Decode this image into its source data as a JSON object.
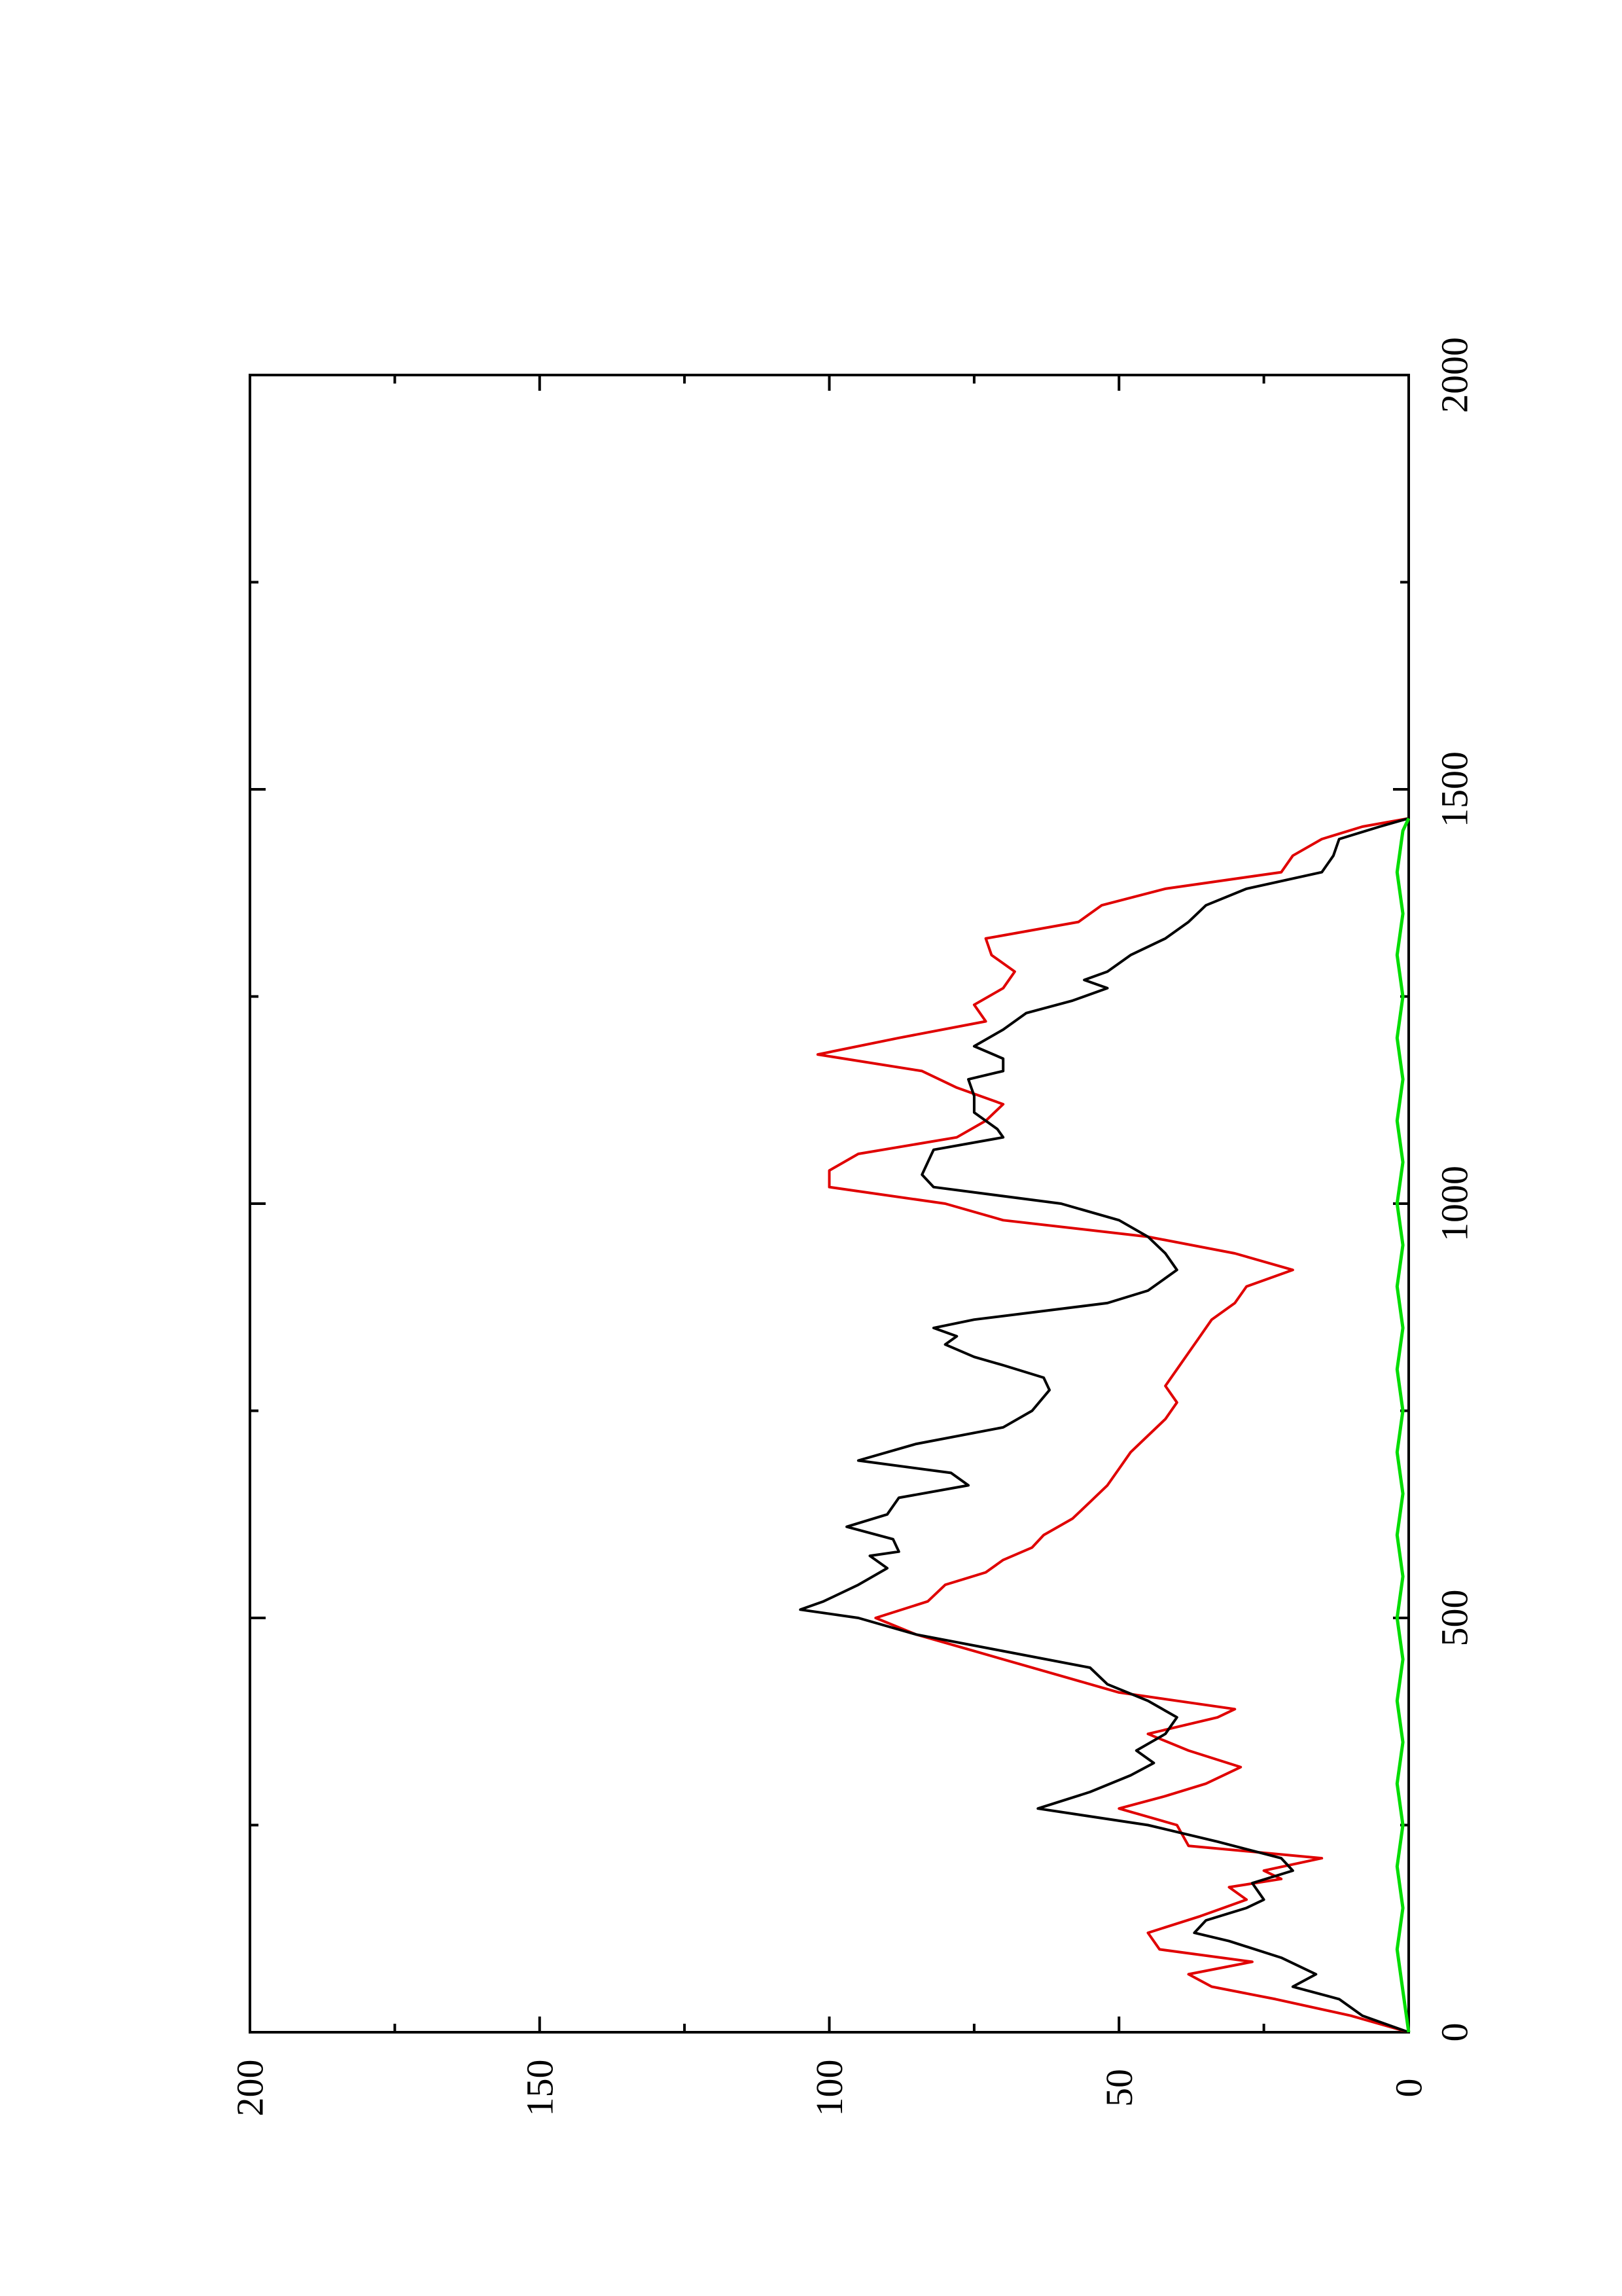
{
  "chart_data": {
    "type": "line",
    "orientation": "rotated-90-ccw",
    "title": "",
    "xlabel": "",
    "ylabel": "",
    "xlim": [
      0,
      2000
    ],
    "ylim": [
      0,
      200
    ],
    "x_ticks": [
      0,
      500,
      1000,
      1500,
      2000
    ],
    "y_ticks": [
      0,
      50,
      100,
      150,
      200
    ],
    "x_minor_step": 250,
    "y_minor_step": 25,
    "grid": false,
    "legend": "none",
    "colors": {
      "black_series": "#000000",
      "red_series": "#e00000",
      "green_series": "#00dd00"
    },
    "series": [
      {
        "color": "black",
        "points": [
          [
            0,
            0
          ],
          [
            20,
            8
          ],
          [
            40,
            12
          ],
          [
            55,
            20
          ],
          [
            70,
            16
          ],
          [
            90,
            22
          ],
          [
            110,
            31
          ],
          [
            120,
            37
          ],
          [
            135,
            35
          ],
          [
            150,
            28
          ],
          [
            160,
            25
          ],
          [
            170,
            26
          ],
          [
            180,
            27
          ],
          [
            195,
            20
          ],
          [
            210,
            22
          ],
          [
            230,
            33
          ],
          [
            250,
            45
          ],
          [
            270,
            64
          ],
          [
            290,
            55
          ],
          [
            310,
            48
          ],
          [
            325,
            44
          ],
          [
            340,
            47
          ],
          [
            360,
            42
          ],
          [
            380,
            40
          ],
          [
            400,
            45
          ],
          [
            420,
            52
          ],
          [
            440,
            55
          ],
          [
            460,
            70
          ],
          [
            480,
            85
          ],
          [
            500,
            95
          ],
          [
            510,
            105
          ],
          [
            520,
            101
          ],
          [
            540,
            95
          ],
          [
            560,
            90
          ],
          [
            575,
            93
          ],
          [
            580,
            88
          ],
          [
            595,
            89
          ],
          [
            610,
            97
          ],
          [
            625,
            90
          ],
          [
            645,
            88
          ],
          [
            660,
            76
          ],
          [
            675,
            79
          ],
          [
            690,
            95
          ],
          [
            710,
            85
          ],
          [
            730,
            70
          ],
          [
            750,
            65
          ],
          [
            775,
            62
          ],
          [
            790,
            63
          ],
          [
            805,
            70
          ],
          [
            815,
            75
          ],
          [
            830,
            80
          ],
          [
            840,
            78
          ],
          [
            850,
            82
          ],
          [
            860,
            75
          ],
          [
            880,
            52
          ],
          [
            895,
            45
          ],
          [
            920,
            40
          ],
          [
            940,
            42
          ],
          [
            960,
            45
          ],
          [
            980,
            50
          ],
          [
            1000,
            60
          ],
          [
            1020,
            82
          ],
          [
            1035,
            84
          ],
          [
            1050,
            83
          ],
          [
            1065,
            82
          ],
          [
            1080,
            70
          ],
          [
            1090,
            71
          ],
          [
            1110,
            75
          ],
          [
            1130,
            75
          ],
          [
            1150,
            76
          ],
          [
            1160,
            70
          ],
          [
            1175,
            70
          ],
          [
            1190,
            75
          ],
          [
            1210,
            70
          ],
          [
            1230,
            66
          ],
          [
            1245,
            58
          ],
          [
            1260,
            52
          ],
          [
            1270,
            56
          ],
          [
            1280,
            52
          ],
          [
            1300,
            48
          ],
          [
            1320,
            42
          ],
          [
            1340,
            38
          ],
          [
            1360,
            35
          ],
          [
            1380,
            28
          ],
          [
            1400,
            15
          ],
          [
            1420,
            13
          ],
          [
            1440,
            12
          ],
          [
            1455,
            5
          ],
          [
            1465,
            0
          ]
        ]
      },
      {
        "color": "red",
        "points": [
          [
            0,
            0
          ],
          [
            20,
            10
          ],
          [
            40,
            23
          ],
          [
            55,
            34
          ],
          [
            70,
            38
          ],
          [
            85,
            27
          ],
          [
            100,
            43
          ],
          [
            120,
            45
          ],
          [
            140,
            36
          ],
          [
            160,
            28
          ],
          [
            175,
            31
          ],
          [
            185,
            22
          ],
          [
            195,
            25
          ],
          [
            210,
            15
          ],
          [
            225,
            38
          ],
          [
            250,
            40
          ],
          [
            270,
            50
          ],
          [
            285,
            42
          ],
          [
            300,
            35
          ],
          [
            320,
            29
          ],
          [
            340,
            38
          ],
          [
            360,
            45
          ],
          [
            380,
            33
          ],
          [
            390,
            30
          ],
          [
            410,
            50
          ],
          [
            430,
            60
          ],
          [
            460,
            75
          ],
          [
            480,
            85
          ],
          [
            500,
            92
          ],
          [
            520,
            83
          ],
          [
            540,
            80
          ],
          [
            555,
            73
          ],
          [
            570,
            70
          ],
          [
            585,
            65
          ],
          [
            600,
            63
          ],
          [
            620,
            58
          ],
          [
            640,
            55
          ],
          [
            660,
            52
          ],
          [
            680,
            50
          ],
          [
            700,
            48
          ],
          [
            720,
            45
          ],
          [
            740,
            42
          ],
          [
            760,
            40
          ],
          [
            780,
            42
          ],
          [
            800,
            40
          ],
          [
            820,
            38
          ],
          [
            840,
            36
          ],
          [
            860,
            34
          ],
          [
            880,
            30
          ],
          [
            900,
            28
          ],
          [
            920,
            20
          ],
          [
            940,
            30
          ],
          [
            960,
            45
          ],
          [
            980,
            70
          ],
          [
            1000,
            80
          ],
          [
            1020,
            100
          ],
          [
            1040,
            100
          ],
          [
            1060,
            95
          ],
          [
            1080,
            78
          ],
          [
            1100,
            73
          ],
          [
            1120,
            70
          ],
          [
            1140,
            78
          ],
          [
            1160,
            84
          ],
          [
            1180,
            102
          ],
          [
            1200,
            88
          ],
          [
            1220,
            73
          ],
          [
            1240,
            75
          ],
          [
            1260,
            70
          ],
          [
            1280,
            68
          ],
          [
            1300,
            72
          ],
          [
            1320,
            73
          ],
          [
            1340,
            57
          ],
          [
            1360,
            53
          ],
          [
            1380,
            42
          ],
          [
            1400,
            22
          ],
          [
            1420,
            20
          ],
          [
            1440,
            15
          ],
          [
            1455,
            8
          ],
          [
            1465,
            0
          ]
        ]
      },
      {
        "color": "green",
        "points": [
          [
            0,
            0
          ],
          [
            50,
            1
          ],
          [
            100,
            2
          ],
          [
            150,
            1
          ],
          [
            200,
            2
          ],
          [
            250,
            1
          ],
          [
            300,
            2
          ],
          [
            350,
            1
          ],
          [
            400,
            2
          ],
          [
            450,
            1
          ],
          [
            500,
            2
          ],
          [
            550,
            1
          ],
          [
            600,
            2
          ],
          [
            650,
            1
          ],
          [
            700,
            2
          ],
          [
            750,
            1
          ],
          [
            800,
            2
          ],
          [
            850,
            1
          ],
          [
            900,
            2
          ],
          [
            950,
            1
          ],
          [
            1000,
            2
          ],
          [
            1050,
            1
          ],
          [
            1100,
            2
          ],
          [
            1150,
            1
          ],
          [
            1200,
            2
          ],
          [
            1250,
            1
          ],
          [
            1300,
            2
          ],
          [
            1350,
            1
          ],
          [
            1400,
            2
          ],
          [
            1450,
            1
          ],
          [
            1465,
            0
          ]
        ]
      }
    ]
  }
}
